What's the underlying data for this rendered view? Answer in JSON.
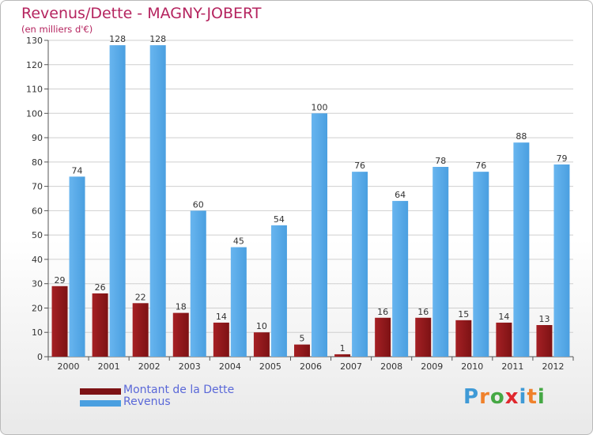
{
  "header": {
    "title": "Revenus/Dette - MAGNY-JOBERT",
    "subtitle": "(en milliers d'€)"
  },
  "legend": {
    "dette_label": "Montant de la Dette",
    "revenus_label": "Revenus"
  },
  "logo": {
    "text": "Proxiti",
    "letters": [
      "P",
      "r",
      "o",
      "x",
      "i",
      "t",
      "i"
    ],
    "colors": [
      "#3f9ad6",
      "#f0812b",
      "#45a844",
      "#e0282e",
      "#3f9ad6",
      "#f0812b",
      "#45a844"
    ]
  },
  "colors": {
    "dette": "#7d1214",
    "dette_light": "#a52024",
    "revenus": "#4a9fe0",
    "revenus_light": "#68b5ef",
    "text": "#333333",
    "grid": "#cfcfcf"
  },
  "chart_data": {
    "type": "bar",
    "title": "Revenus/Dette - MAGNY-JOBERT",
    "subtitle": "(en milliers d'€)",
    "categories": [
      "2000",
      "2001",
      "2002",
      "2003",
      "2004",
      "2005",
      "2006",
      "2007",
      "2008",
      "2009",
      "2010",
      "2011",
      "2012"
    ],
    "series": [
      {
        "name": "Montant de la Dette",
        "values": [
          29,
          26,
          22,
          18,
          14,
          10,
          5,
          1,
          16,
          16,
          15,
          14,
          13
        ]
      },
      {
        "name": "Revenus",
        "values": [
          74,
          128,
          128,
          60,
          45,
          54,
          100,
          76,
          64,
          78,
          76,
          88,
          79
        ]
      }
    ],
    "ylim": [
      0,
      130
    ],
    "yticks": [
      0,
      10,
      20,
      30,
      40,
      50,
      60,
      70,
      80,
      90,
      100,
      110,
      120,
      130
    ],
    "grid": true,
    "legend_position": "bottom-left"
  }
}
